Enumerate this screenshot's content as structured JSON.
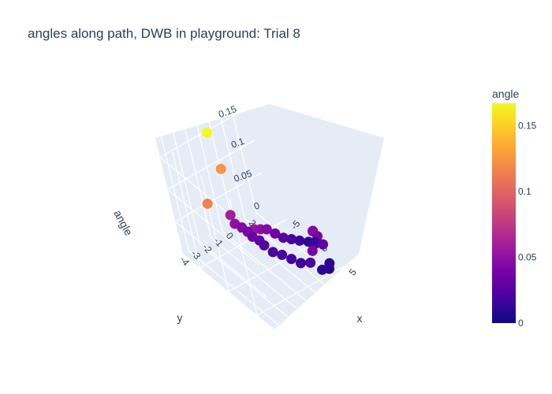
{
  "chart_data": {
    "type": "scatter3d",
    "title": "angles along path, DWB in playground: Trial 8",
    "xlabel": "x",
    "ylabel": "y",
    "zlabel": "angle",
    "x_ticks": [
      "-5",
      "0",
      "5"
    ],
    "y_ticks": [
      "-4",
      "-3",
      "-2",
      "-1",
      "0",
      "1",
      "2"
    ],
    "z_ticks": [
      "0",
      "0.05",
      "0.1",
      "0.15"
    ],
    "colorbar": {
      "title": "angle",
      "ticks": [
        "0",
        "0.05",
        "0.1",
        "0.15"
      ],
      "range": [
        0,
        0.167
      ],
      "colorscale": "plasma"
    },
    "points": [
      {
        "x": -6.2,
        "y": -1.0,
        "angle": 0.167
      },
      {
        "x": -4.5,
        "y": -1.2,
        "angle": 0.125
      },
      {
        "x": -2.0,
        "y": -3.8,
        "angle": 0.115
      },
      {
        "x": -4.0,
        "y": -1.5,
        "angle": 0.06
      },
      {
        "x": -3.5,
        "y": -1.5,
        "angle": 0.05
      },
      {
        "x": -3.0,
        "y": -1.2,
        "angle": 0.045
      },
      {
        "x": -2.5,
        "y": -1.0,
        "angle": 0.04
      },
      {
        "x": -2.0,
        "y": -0.9,
        "angle": 0.035
      },
      {
        "x": -1.5,
        "y": -0.6,
        "angle": 0.03
      },
      {
        "x": -1.0,
        "y": -0.5,
        "angle": 0.025
      },
      {
        "x": 0.0,
        "y": -0.3,
        "angle": 0.02
      },
      {
        "x": 1.0,
        "y": 0.0,
        "angle": 0.02
      },
      {
        "x": 2.0,
        "y": 0.3,
        "angle": 0.018
      },
      {
        "x": 3.0,
        "y": 0.6,
        "angle": 0.016
      },
      {
        "x": 4.0,
        "y": 1.0,
        "angle": 0.02
      },
      {
        "x": 4.5,
        "y": 1.2,
        "angle": 0.04
      },
      {
        "x": 4.8,
        "y": 1.5,
        "angle": 0.01
      },
      {
        "x": 5.0,
        "y": 2.0,
        "angle": 0.008
      },
      {
        "x": 4.5,
        "y": 2.3,
        "angle": 0.01
      },
      {
        "x": 3.5,
        "y": 2.5,
        "angle": 0.03
      },
      {
        "x": 3.0,
        "y": 2.4,
        "angle": 0.04
      },
      {
        "x": 2.5,
        "y": 2.3,
        "angle": 0.045
      },
      {
        "x": 2.0,
        "y": 2.5,
        "angle": 0.04
      },
      {
        "x": 1.5,
        "y": 2.6,
        "angle": 0.015
      },
      {
        "x": 1.0,
        "y": 2.8,
        "angle": 0.012
      },
      {
        "x": 0.5,
        "y": 2.5,
        "angle": 0.012
      },
      {
        "x": 0.0,
        "y": 2.0,
        "angle": 0.015
      },
      {
        "x": -0.3,
        "y": 1.5,
        "angle": 0.02
      },
      {
        "x": -0.6,
        "y": 1.0,
        "angle": 0.025
      },
      {
        "x": -0.8,
        "y": 0.5,
        "angle": 0.035
      },
      {
        "x": -1.0,
        "y": 0.0,
        "angle": 0.045
      },
      {
        "x": -1.0,
        "y": -0.5,
        "angle": 0.05
      },
      {
        "x": -1.0,
        "y": -1.0,
        "angle": 0.055
      }
    ]
  }
}
